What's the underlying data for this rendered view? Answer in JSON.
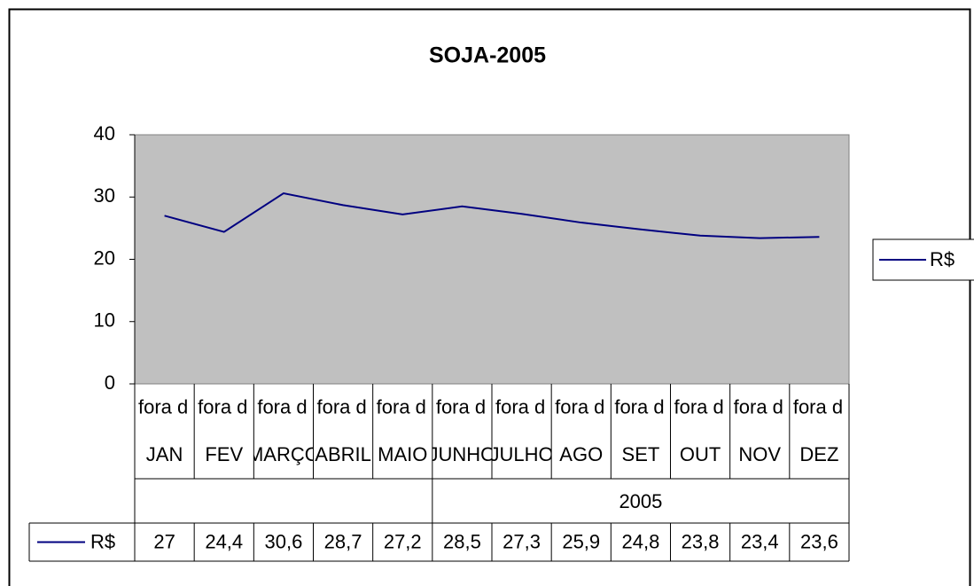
{
  "chart_data": {
    "type": "line",
    "title": "SOJA-2005",
    "categories": [
      "JAN",
      "FEV",
      "MARÇO",
      "ABRIL",
      "MAIO",
      "JUNHO",
      "JULHO",
      "AGO",
      "SET",
      "OUT",
      "NOV",
      "DEZ"
    ],
    "category_level2": [
      "fora d",
      "fora d",
      "fora d",
      "fora d",
      "fora d",
      "fora d",
      "fora d",
      "fora d",
      "fora d",
      "fora d",
      "fora d",
      "fora d"
    ],
    "category_level3": [
      null,
      null,
      null,
      null,
      null,
      "2005",
      null,
      null,
      null,
      null,
      null,
      null
    ],
    "series": [
      {
        "name": "R$",
        "color": "#000080",
        "values": [
          27,
          24.4,
          30.6,
          28.7,
          27.2,
          28.5,
          27.3,
          25.9,
          24.8,
          23.8,
          23.4,
          23.6
        ],
        "value_labels": [
          "27",
          "24,4",
          "30,6",
          "28,7",
          "27,2",
          "28,5",
          "27,3",
          "25,9",
          "24,8",
          "23,8",
          "23,4",
          "23,6"
        ]
      }
    ],
    "ylim": [
      0,
      40
    ],
    "yticks": [
      0,
      10,
      20,
      30,
      40
    ],
    "plot_background": "#c0c0c0",
    "legend": "right"
  }
}
